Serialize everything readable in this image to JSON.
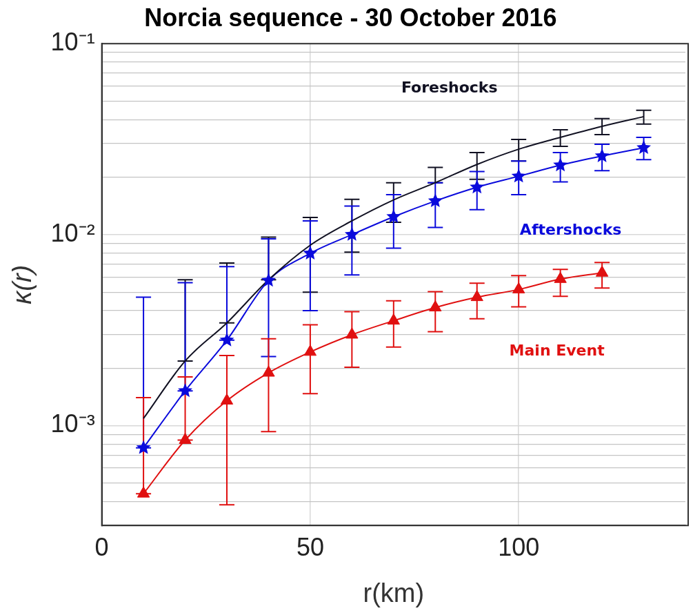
{
  "chart_data": {
    "type": "line",
    "title": "Norcia sequence - 30 October 2016",
    "xlabel": "r(km)",
    "ylabel": "κ(r)",
    "x": [
      10,
      20,
      30,
      40,
      50,
      60,
      70,
      80,
      90,
      100,
      110,
      120,
      130
    ],
    "series": [
      {
        "name": "Foreshocks",
        "color": "#111122",
        "marker": "none",
        "values": [
          0.00109,
          0.00218,
          0.00345,
          0.0058,
          0.0088,
          0.0118,
          0.0152,
          0.0187,
          0.0233,
          0.028,
          0.0323,
          0.0369,
          0.0415
        ],
        "errors": [
          null,
          [
            0.00218,
            0.0058
          ],
          [
            0.00345,
            0.0071
          ],
          [
            0.0058,
            0.0097
          ],
          [
            0.005,
            0.0123
          ],
          [
            0.0081,
            0.0153
          ],
          [
            0.0116,
            0.0187
          ],
          [
            0.0187,
            0.0225
          ],
          [
            0.0195,
            0.0269
          ],
          [
            0.0243,
            0.0315
          ],
          [
            0.029,
            0.0354
          ],
          [
            0.0334,
            0.0405
          ],
          [
            0.0379,
            0.0448
          ]
        ]
      },
      {
        "name": "Aftershocks",
        "color": "#0a0adc",
        "marker": "star",
        "values": [
          0.000765,
          0.00152,
          0.0028,
          0.00575,
          0.00798,
          0.01,
          0.0124,
          0.015,
          0.0177,
          0.0202,
          0.0231,
          0.0258,
          0.0285
        ],
        "errors": [
          [
            0.000765,
            0.0047
          ],
          [
            0.00152,
            0.0056
          ],
          [
            0.0028,
            0.0068
          ],
          [
            0.0023,
            0.0095
          ],
          [
            0.004,
            0.0118
          ],
          [
            0.00615,
            0.0141
          ],
          [
            0.0085,
            0.0162
          ],
          [
            0.0109,
            0.0187
          ],
          [
            0.0135,
            0.0214
          ],
          [
            0.0162,
            0.0243
          ],
          [
            0.0189,
            0.0269
          ],
          [
            0.0216,
            0.0297
          ],
          [
            0.0247,
            0.0323
          ]
        ]
      },
      {
        "name": "Main Event",
        "color": "#e01010",
        "marker": "triangle",
        "values": [
          0.00044,
          0.00084,
          0.00135,
          0.00189,
          0.00243,
          0.00299,
          0.00354,
          0.00415,
          0.0047,
          0.00516,
          0.00585,
          0.00631,
          null
        ],
        "errors": [
          [
            0.00044,
            0.0014
          ],
          [
            0.00084,
            0.0018
          ],
          [
            0.000385,
            0.00233
          ],
          [
            0.00093,
            0.00285
          ],
          [
            0.00147,
            0.00337
          ],
          [
            0.00202,
            0.00395
          ],
          [
            0.00258,
            0.0045
          ],
          [
            0.0031,
            0.00503
          ],
          [
            0.00363,
            0.00557
          ],
          [
            0.00419,
            0.0061
          ],
          [
            0.00475,
            0.00658
          ],
          [
            0.00525,
            0.00715
          ],
          null
        ]
      }
    ],
    "log": "y",
    "xlim": [
      0,
      140
    ],
    "xticks": [
      0,
      50,
      100
    ],
    "ylim": [
      0.0003,
      0.1
    ],
    "yticks": [
      {
        "value": 0.0004,
        "label": null
      },
      {
        "value": 0.0005,
        "label": null
      },
      {
        "value": 0.0006,
        "label": null
      },
      {
        "value": 0.0007,
        "label": null
      },
      {
        "value": 0.0008,
        "label": null
      },
      {
        "value": 0.0009,
        "label": null
      },
      {
        "value": 0.001,
        "label": "10⁻³"
      },
      {
        "value": 0.002,
        "label": null
      },
      {
        "value": 0.003,
        "label": null
      },
      {
        "value": 0.004,
        "label": null
      },
      {
        "value": 0.005,
        "label": null
      },
      {
        "value": 0.006,
        "label": null
      },
      {
        "value": 0.007,
        "label": null
      },
      {
        "value": 0.008,
        "label": null
      },
      {
        "value": 0.009,
        "label": null
      },
      {
        "value": 0.01,
        "label": "10⁻²"
      },
      {
        "value": 0.02,
        "label": null
      },
      {
        "value": 0.03,
        "label": null
      },
      {
        "value": 0.04,
        "label": null
      },
      {
        "value": 0.05,
        "label": null
      },
      {
        "value": 0.06,
        "label": null
      },
      {
        "value": 0.07,
        "label": null
      },
      {
        "value": 0.08,
        "label": null
      },
      {
        "value": 0.09,
        "label": null
      },
      {
        "value": 0.1,
        "label": "10⁻¹"
      }
    ],
    "grid": true,
    "legend": false
  }
}
